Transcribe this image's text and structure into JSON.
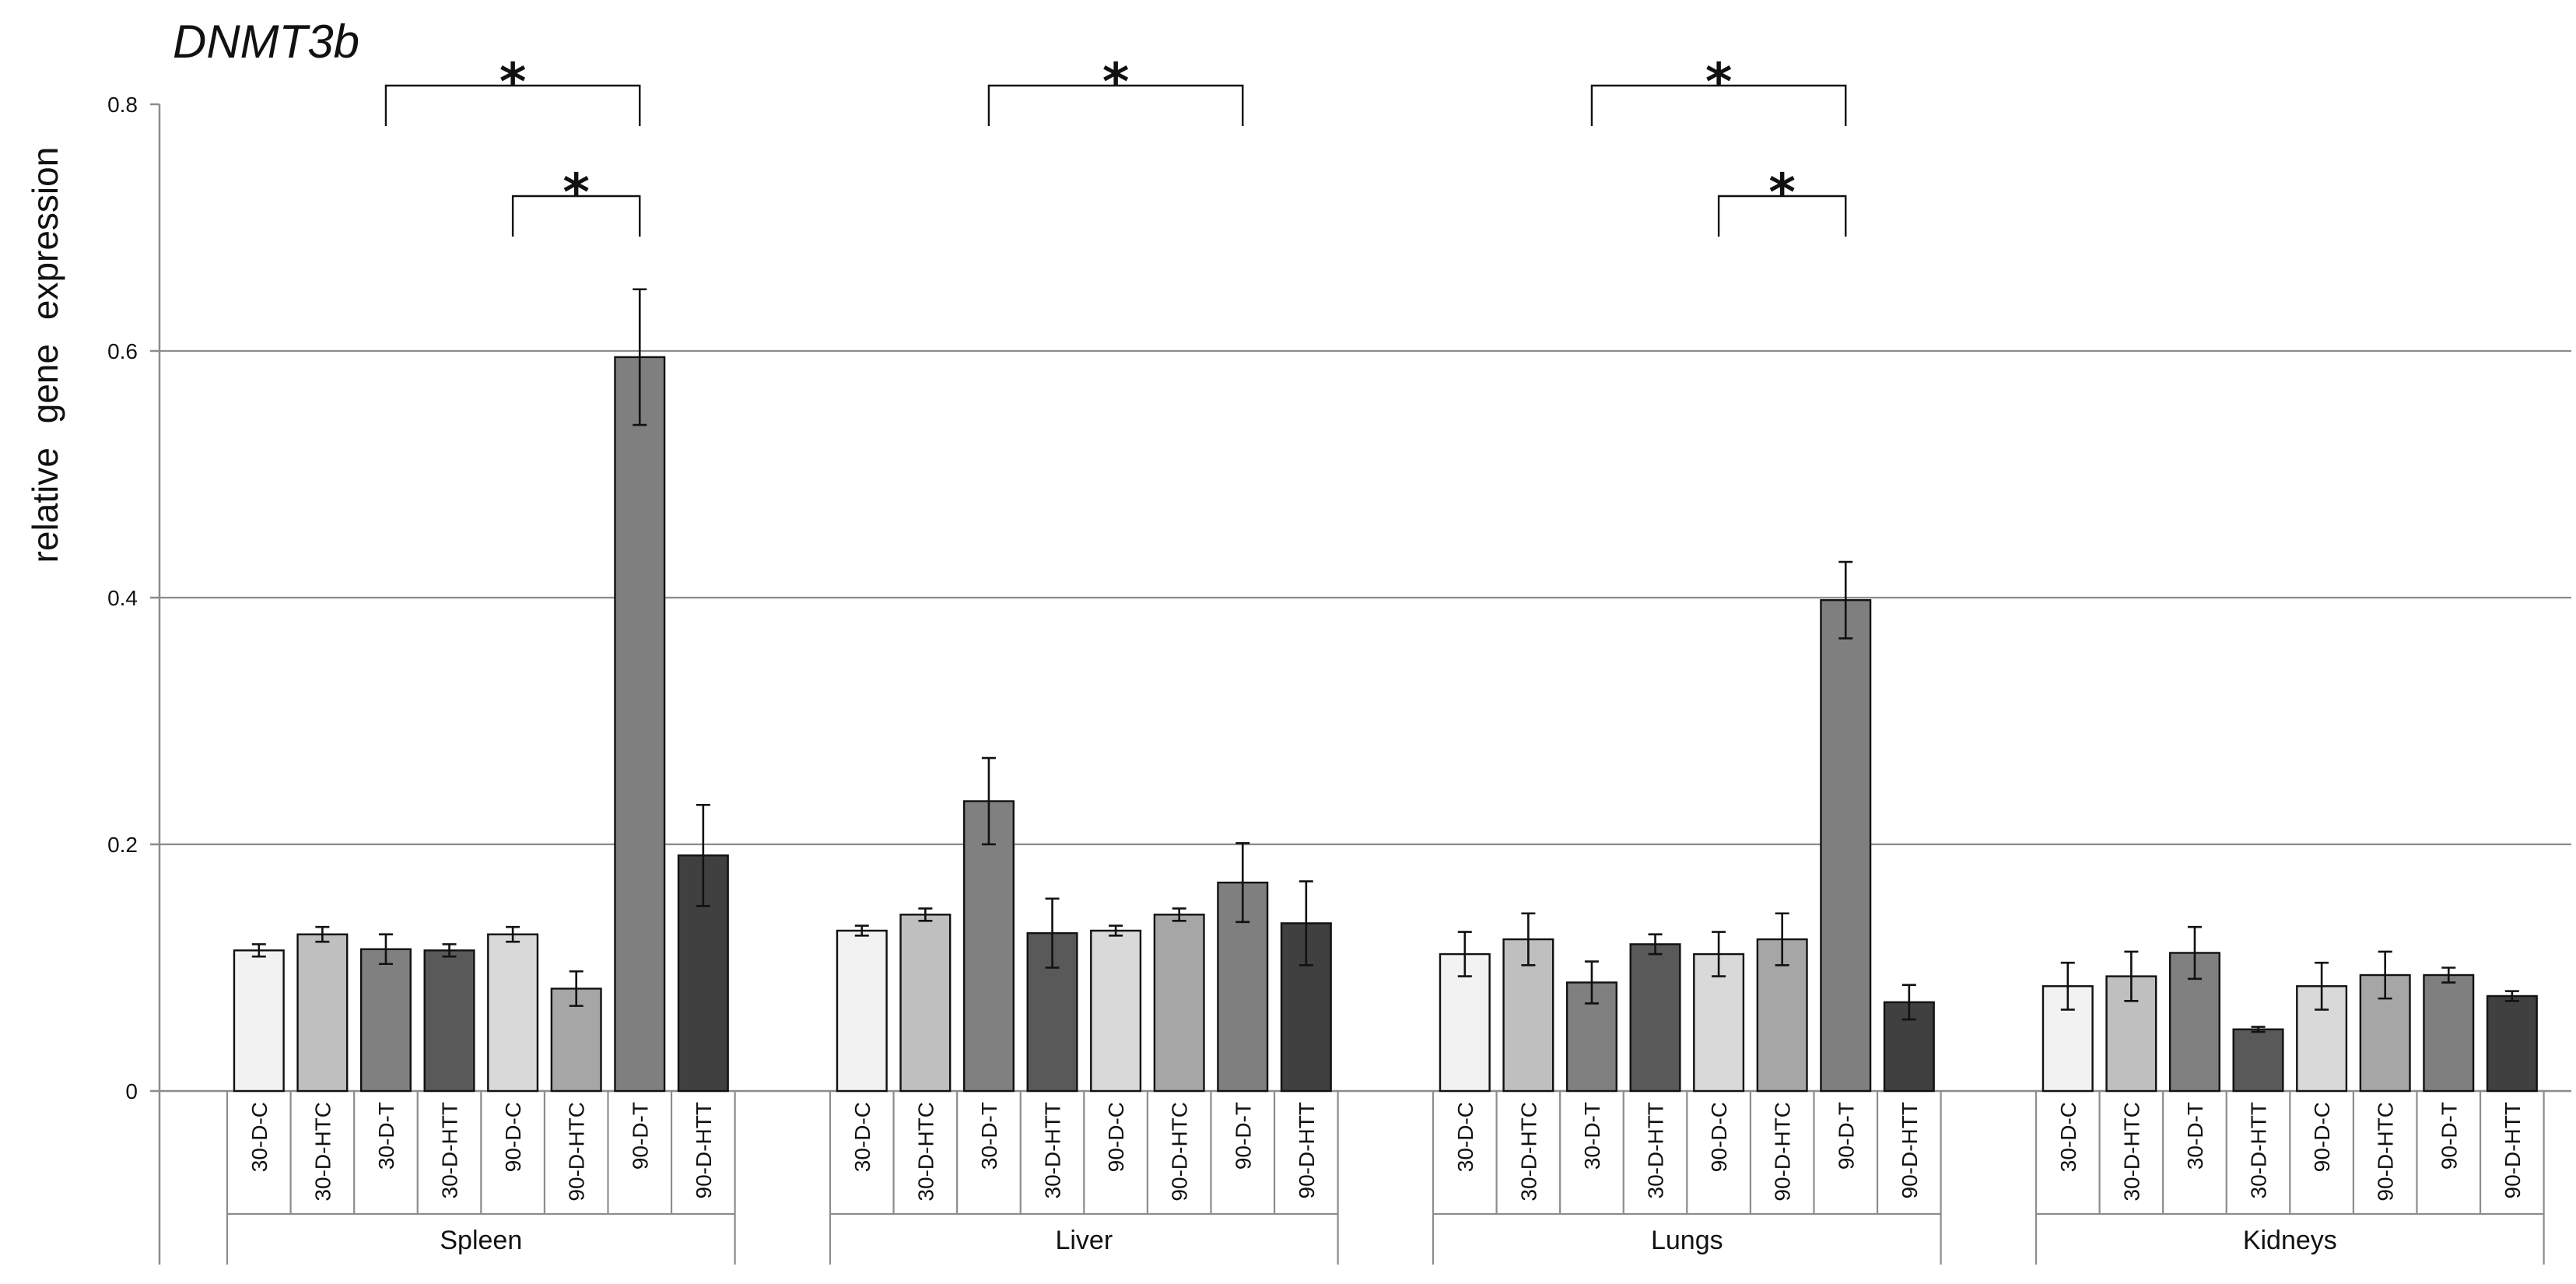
{
  "chart_data": {
    "type": "bar",
    "title": "DNMT3b",
    "xlabel": "",
    "ylabel": "relative gene expression",
    "ylim": [
      0,
      0.8
    ],
    "yticks": [
      0,
      0.2,
      0.4,
      0.6,
      0.8
    ],
    "ytick_labels": [
      "0",
      "0.2",
      "0.4",
      "0.6",
      "0.8"
    ],
    "gridlines": [
      0.2,
      0.4,
      0.6
    ],
    "categories": [
      "30-D-C",
      "30-D-HTC",
      "30-D-T",
      "30-D-HTT",
      "90-D-C",
      "90-D-HTC",
      "90-D-T",
      "90-D-HTT"
    ],
    "category_colors": [
      "#f2f2f2",
      "#bfbfbf",
      "#808080",
      "#595959",
      "#d9d9d9",
      "#a6a6a6",
      "#7f7f7f",
      "#404040"
    ],
    "groups": [
      {
        "name": "Spleen",
        "values": [
          0.114,
          0.127,
          0.115,
          0.114,
          0.127,
          0.083,
          0.595,
          0.191
        ],
        "errors": [
          0.005,
          0.006,
          0.012,
          0.005,
          0.006,
          0.014,
          0.055,
          0.041
        ]
      },
      {
        "name": "Liver",
        "values": [
          0.13,
          0.143,
          0.235,
          0.128,
          0.13,
          0.143,
          0.169,
          0.136
        ],
        "errors": [
          0.004,
          0.005,
          0.035,
          0.028,
          0.004,
          0.005,
          0.032,
          0.034
        ]
      },
      {
        "name": "Lungs",
        "values": [
          0.111,
          0.123,
          0.088,
          0.119,
          0.111,
          0.123,
          0.398,
          0.072
        ],
        "errors": [
          0.018,
          0.021,
          0.017,
          0.008,
          0.018,
          0.021,
          0.031,
          0.014
        ]
      },
      {
        "name": "Kidneys",
        "values": [
          0.085,
          0.093,
          0.112,
          0.05,
          0.085,
          0.094,
          0.094,
          0.077
        ],
        "errors": [
          0.019,
          0.02,
          0.021,
          0.002,
          0.019,
          0.019,
          0.006,
          0.004
        ]
      }
    ],
    "significance": [
      {
        "group": 0,
        "from": 2,
        "to": 6,
        "level": 1,
        "label": "*"
      },
      {
        "group": 0,
        "from": 4,
        "to": 6,
        "level": 2,
        "label": "*"
      },
      {
        "group": 1,
        "from": 2,
        "to": 6,
        "level": 1,
        "label": "*"
      },
      {
        "group": 2,
        "from": 2,
        "to": 6,
        "level": 1,
        "label": "*"
      },
      {
        "group": 2,
        "from": 4,
        "to": 6,
        "level": 2,
        "label": "*"
      }
    ]
  }
}
